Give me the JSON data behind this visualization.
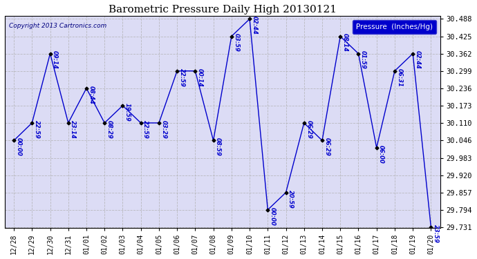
{
  "title": "Barometric Pressure Daily High 20130121",
  "copyright": "Copyright 2013 Cartronics.com",
  "legend_label": "Pressure  (Inches/Hg)",
  "x_labels": [
    "12/28",
    "12/29",
    "12/30",
    "12/31",
    "01/01",
    "01/02",
    "01/03",
    "01/04",
    "01/05",
    "01/06",
    "01/07",
    "01/08",
    "01/09",
    "01/10",
    "01/11",
    "01/12",
    "01/13",
    "01/14",
    "01/15",
    "01/16",
    "01/17",
    "01/18",
    "01/19",
    "01/20"
  ],
  "y_values": [
    30.046,
    30.11,
    30.362,
    30.11,
    30.236,
    30.11,
    30.173,
    30.11,
    30.11,
    30.299,
    30.299,
    30.046,
    30.425,
    30.488,
    29.794,
    29.857,
    30.11,
    30.046,
    30.425,
    30.362,
    30.02,
    30.299,
    30.362,
    29.731
  ],
  "point_labels": [
    "00:00",
    "22:59",
    "09:14",
    "23:14",
    "08:44",
    "08:29",
    "19:59",
    "22:59",
    "03:29",
    "22:59",
    "00:14",
    "08:59",
    "03:59",
    "02:44",
    "00:00",
    "20:59",
    "06:29",
    "06:29",
    "08:14",
    "01:59",
    "06:00",
    "06:31",
    "02:44",
    "23:59"
  ],
  "ylim_min": 29.731,
  "ylim_max": 30.488,
  "yticks": [
    29.731,
    29.794,
    29.857,
    29.92,
    29.983,
    30.046,
    30.11,
    30.173,
    30.236,
    30.299,
    30.362,
    30.425,
    30.488
  ],
  "line_color": "#0000cc",
  "marker_color": "#000000",
  "bg_color": "#ffffff",
  "plot_bg_color": "#dcdcf5",
  "title_color": "#000000",
  "label_color": "#0000cc",
  "grid_color": "#b0b0b0",
  "legend_bg": "#0000cc",
  "legend_fg": "#ffffff"
}
